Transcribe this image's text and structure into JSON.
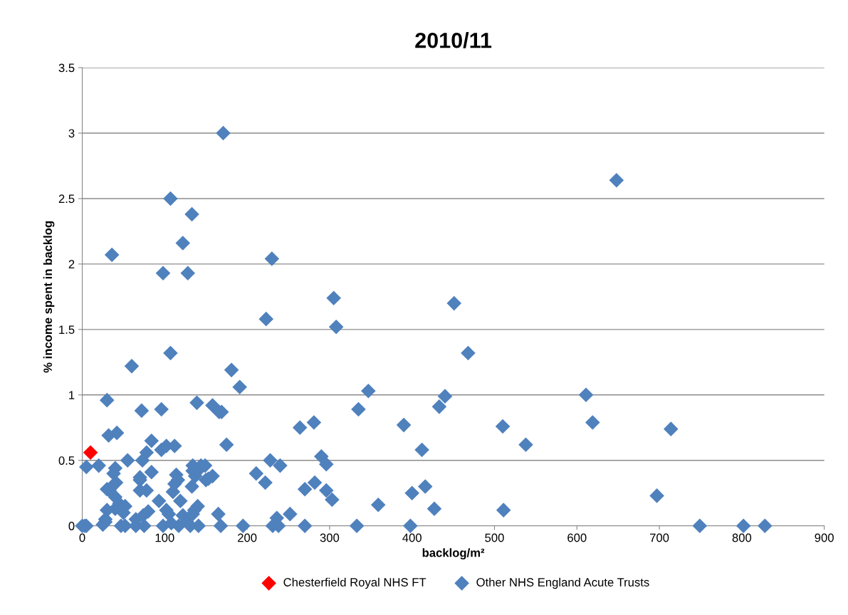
{
  "chart_data": {
    "type": "scatter",
    "title": "2010/11",
    "xlabel": "backlog/m²",
    "ylabel": "% income spent in backlog",
    "xlim": [
      0,
      900
    ],
    "xticks": [
      0,
      100,
      200,
      300,
      400,
      500,
      600,
      700,
      800,
      900
    ],
    "ylim": [
      0,
      3.5
    ],
    "yticks": [
      0,
      0.5,
      1,
      1.5,
      2,
      2.5,
      3,
      3.5
    ],
    "grid": "y",
    "legend": "bottom",
    "marker": "diamond",
    "series": [
      {
        "name": "Chesterfield Royal NHS FT",
        "color": "#ff0000",
        "x": [
          10
        ],
        "values": [
          0.56
        ]
      },
      {
        "name": "Other NHS England Acute Trusts",
        "color": "#4f81bd",
        "x": [
          171,
          648,
          107,
          133,
          122,
          36,
          98,
          128,
          230,
          223,
          305,
          308,
          451,
          468,
          107,
          60,
          181,
          191,
          347,
          440,
          611,
          619,
          714,
          30,
          72,
          96,
          139,
          158,
          166,
          169,
          335,
          433,
          264,
          281,
          390,
          510,
          538,
          412,
          175,
          32,
          42,
          84,
          102,
          112,
          96,
          78,
          73,
          55,
          5,
          20,
          40,
          38,
          41,
          36,
          30,
          33,
          40,
          45,
          52,
          40,
          30,
          50,
          28,
          25,
          28,
          47,
          52,
          65,
          65,
          70,
          70,
          70,
          78,
          74,
          75,
          80,
          84,
          93,
          98,
          102,
          105,
          108,
          110,
          112,
          114,
          116,
          119,
          122,
          127,
          131,
          134,
          134,
          134,
          133,
          137,
          140,
          136,
          140,
          141,
          144,
          149,
          150,
          153,
          158,
          165,
          168,
          195,
          211,
          222,
          228,
          231,
          236,
          240,
          238,
          252,
          270,
          270,
          282,
          290,
          296,
          296,
          303,
          333,
          359,
          398,
          400,
          416,
          427,
          511,
          697,
          749,
          802,
          828,
          0,
          3,
          5,
          117
        ],
        "values": [
          3.0,
          2.64,
          2.5,
          2.38,
          2.16,
          2.07,
          1.93,
          1.93,
          2.04,
          1.58,
          1.74,
          1.52,
          1.7,
          1.32,
          1.32,
          1.22,
          1.19,
          1.06,
          1.03,
          0.99,
          1.0,
          0.79,
          0.74,
          0.96,
          0.88,
          0.89,
          0.94,
          0.92,
          0.87,
          0.87,
          0.89,
          0.91,
          0.75,
          0.79,
          0.77,
          0.76,
          0.62,
          0.58,
          0.62,
          0.69,
          0.71,
          0.65,
          0.61,
          0.61,
          0.58,
          0.56,
          0.5,
          0.5,
          0.45,
          0.46,
          0.44,
          0.4,
          0.33,
          0.3,
          0.28,
          0.27,
          0.22,
          0.17,
          0.15,
          0.13,
          0.12,
          0.1,
          0.05,
          0.01,
          0.03,
          0.0,
          0.0,
          0.05,
          0.0,
          0.27,
          0.35,
          0.37,
          0.27,
          0.08,
          0.0,
          0.11,
          0.41,
          0.19,
          0.0,
          0.12,
          0.09,
          0.02,
          0.26,
          0.32,
          0.39,
          0.35,
          0.19,
          0.08,
          0.03,
          0.0,
          0.09,
          0.46,
          0.42,
          0.3,
          0.38,
          0.42,
          0.12,
          0.15,
          0.0,
          0.46,
          0.46,
          0.35,
          0.36,
          0.38,
          0.09,
          0.0,
          0.0,
          0.4,
          0.33,
          0.5,
          0.0,
          0.06,
          0.46,
          0.0,
          0.09,
          0.28,
          0.0,
          0.33,
          0.53,
          0.47,
          0.27,
          0.2,
          0.0,
          0.16,
          0.0,
          0.25,
          0.3,
          0.13,
          0.12,
          0.23,
          0.0,
          0.0,
          0.0,
          0.0,
          0.0,
          0.0,
          0.0
        ]
      }
    ]
  }
}
